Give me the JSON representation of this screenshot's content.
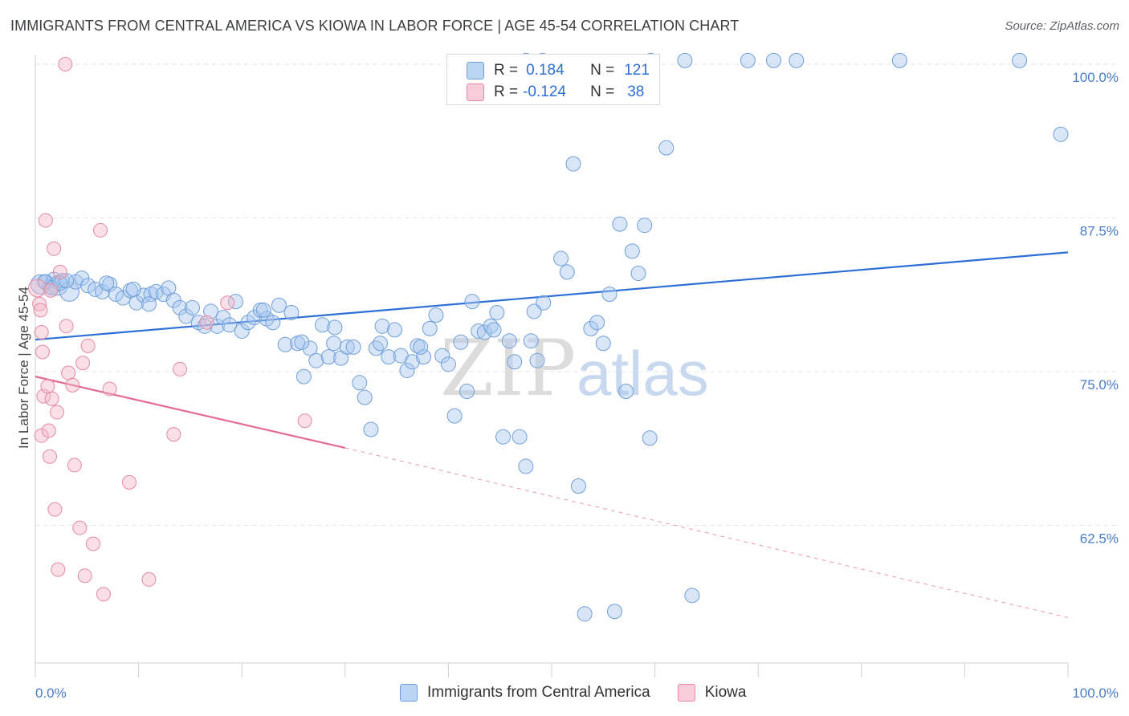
{
  "header": {
    "title": "IMMIGRANTS FROM CENTRAL AMERICA VS KIOWA IN LABOR FORCE | AGE 45-54 CORRELATION CHART",
    "source": "Source: ZipAtlas.com"
  },
  "legend": {
    "rows": [
      {
        "r_label": "R =",
        "r_value": "0.184",
        "n_label": "N =",
        "n_value": "121",
        "color": "#a8c8f0"
      },
      {
        "r_label": "R =",
        "r_value": "-0.124",
        "n_label": "N =",
        "n_value": "38",
        "color": "#f5b8c8"
      }
    ]
  },
  "watermark": {
    "zip": "ZIP",
    "atlas": "atlas"
  },
  "chart_data": {
    "type": "scatter",
    "title": "IMMIGRANTS FROM CENTRAL AMERICA VS KIOWA IN LABOR FORCE | AGE 45-54 CORRELATION CHART",
    "xlabel": "",
    "ylabel": "In Labor Force | Age 45-54",
    "xlim": [
      0,
      100
    ],
    "ylim": [
      51,
      102
    ],
    "x_tick_labels": [
      "0.0%",
      "100.0%"
    ],
    "y_ticks": [
      62.5,
      75.0,
      87.5,
      100.0
    ],
    "y_tick_labels": [
      "62.5%",
      "75.0%",
      "87.5%",
      "100.0%"
    ],
    "grid": true,
    "legend_position": "top-center",
    "series": [
      {
        "name": "Immigrants from Central America",
        "color": "#a8c8f0",
        "stroke": "#6f9fd8",
        "line_color": "#2d6fd6",
        "trend": {
          "x0": 0,
          "y0": 77.6,
          "x1": 100,
          "y1": 84.7
        },
        "points": [
          [
            0.5,
            82.1
          ],
          [
            1.0,
            82.3
          ],
          [
            1.4,
            81.9
          ],
          [
            1.8,
            82.5
          ],
          [
            2.2,
            82.0
          ],
          [
            2.6,
            82.4
          ],
          [
            3.3,
            81.5
          ],
          [
            3.9,
            82.3
          ],
          [
            4.5,
            82.6
          ],
          [
            5.1,
            82.0
          ],
          [
            5.8,
            81.7
          ],
          [
            6.5,
            81.5
          ],
          [
            7.2,
            82.1
          ],
          [
            7.8,
            81.3
          ],
          [
            8.5,
            81.0
          ],
          [
            9.2,
            81.6
          ],
          [
            9.8,
            80.6
          ],
          [
            10.5,
            81.2
          ],
          [
            11.2,
            81.3
          ],
          [
            11.7,
            81.5
          ],
          [
            12.4,
            81.3
          ],
          [
            12.9,
            81.8
          ],
          [
            13.4,
            80.8
          ],
          [
            14.0,
            80.2
          ],
          [
            14.6,
            79.5
          ],
          [
            15.2,
            80.2
          ],
          [
            15.8,
            79.0
          ],
          [
            16.4,
            78.7
          ],
          [
            17.0,
            79.9
          ],
          [
            17.6,
            78.7
          ],
          [
            18.2,
            79.4
          ],
          [
            18.8,
            78.8
          ],
          [
            19.4,
            80.7
          ],
          [
            20.0,
            78.3
          ],
          [
            20.6,
            79.0
          ],
          [
            21.2,
            79.4
          ],
          [
            21.8,
            80.0
          ],
          [
            22.4,
            79.3
          ],
          [
            23.0,
            79.0
          ],
          [
            23.6,
            80.4
          ],
          [
            24.2,
            77.2
          ],
          [
            24.8,
            79.8
          ],
          [
            25.4,
            77.3
          ],
          [
            26.0,
            74.6
          ],
          [
            26.6,
            76.9
          ],
          [
            27.2,
            75.9
          ],
          [
            27.8,
            78.8
          ],
          [
            28.4,
            76.2
          ],
          [
            29.0,
            78.6
          ],
          [
            29.6,
            76.1
          ],
          [
            30.2,
            77.0
          ],
          [
            30.8,
            77.0
          ],
          [
            31.4,
            74.1
          ],
          [
            31.9,
            72.9
          ],
          [
            32.5,
            70.3
          ],
          [
            33.0,
            76.9
          ],
          [
            33.6,
            78.7
          ],
          [
            34.2,
            76.2
          ],
          [
            34.8,
            78.4
          ],
          [
            35.4,
            76.3
          ],
          [
            36.0,
            75.1
          ],
          [
            36.5,
            75.8
          ],
          [
            37.0,
            77.1
          ],
          [
            37.6,
            76.2
          ],
          [
            38.2,
            78.5
          ],
          [
            38.8,
            79.6
          ],
          [
            39.4,
            76.3
          ],
          [
            40.0,
            75.6
          ],
          [
            40.6,
            71.4
          ],
          [
            41.2,
            77.4
          ],
          [
            41.8,
            73.4
          ],
          [
            42.3,
            80.7
          ],
          [
            42.9,
            78.3
          ],
          [
            43.5,
            78.2
          ],
          [
            44.1,
            78.7
          ],
          [
            44.7,
            79.8
          ],
          [
            45.3,
            69.7
          ],
          [
            45.9,
            77.5
          ],
          [
            46.4,
            75.8
          ],
          [
            46.9,
            69.7
          ],
          [
            47.5,
            67.3
          ],
          [
            48.0,
            77.5
          ],
          [
            48.6,
            75.9
          ],
          [
            49.2,
            80.6
          ],
          [
            50.9,
            84.2
          ],
          [
            51.5,
            83.1
          ],
          [
            52.1,
            91.9
          ],
          [
            52.6,
            65.7
          ],
          [
            53.2,
            55.3
          ],
          [
            53.8,
            78.5
          ],
          [
            54.4,
            79.0
          ],
          [
            55.0,
            77.3
          ],
          [
            55.6,
            81.3
          ],
          [
            56.1,
            55.5
          ],
          [
            56.6,
            87.0
          ],
          [
            57.2,
            73.4
          ],
          [
            57.8,
            84.8
          ],
          [
            58.4,
            83.0
          ],
          [
            59.0,
            86.9
          ],
          [
            59.5,
            69.6
          ],
          [
            61.1,
            93.2
          ],
          [
            63.6,
            56.8
          ],
          [
            0.9,
            82.3
          ],
          [
            1.6,
            81.8
          ],
          [
            2.4,
            82.2
          ],
          [
            3.0,
            82.4
          ],
          [
            6.9,
            82.2
          ],
          [
            9.5,
            81.7
          ],
          [
            11.0,
            80.5
          ],
          [
            22.1,
            80.0
          ],
          [
            25.8,
            77.4
          ],
          [
            28.9,
            77.3
          ],
          [
            33.4,
            77.3
          ],
          [
            37.3,
            77.0
          ],
          [
            44.4,
            78.4
          ],
          [
            48.3,
            79.9
          ],
          [
            99.3,
            94.3
          ],
          [
            73.7,
            100.3
          ]
        ],
        "top_row_points": [
          [
            47.5,
            100.3
          ],
          [
            49.1,
            100.3
          ],
          [
            59.6,
            100.3
          ],
          [
            62.9,
            100.3
          ],
          [
            69.0,
            100.3
          ],
          [
            71.5,
            100.3
          ],
          [
            83.7,
            100.3
          ],
          [
            95.3,
            100.3
          ]
        ]
      },
      {
        "name": "Kiowa",
        "color": "#f5b8c8",
        "stroke": "#e48aa3",
        "line_color": "#e36b95",
        "trend": {
          "x0": 0,
          "y0": 74.6,
          "x1": 30,
          "y1": 68.8
        },
        "trend_dashed": {
          "x0": 30,
          "y0": 68.8,
          "x1": 100,
          "y1": 55.0
        },
        "points": [
          [
            0.2,
            81.8
          ],
          [
            0.4,
            80.5
          ],
          [
            0.5,
            80.0
          ],
          [
            0.6,
            78.2
          ],
          [
            0.7,
            76.6
          ],
          [
            0.8,
            73.0
          ],
          [
            0.6,
            69.8
          ],
          [
            1.0,
            87.3
          ],
          [
            1.2,
            73.8
          ],
          [
            1.3,
            70.2
          ],
          [
            1.4,
            68.1
          ],
          [
            1.6,
            72.8
          ],
          [
            1.8,
            85.0
          ],
          [
            1.9,
            63.8
          ],
          [
            2.1,
            71.7
          ],
          [
            2.2,
            58.9
          ],
          [
            2.4,
            83.1
          ],
          [
            3.0,
            78.7
          ],
          [
            3.2,
            74.9
          ],
          [
            3.6,
            73.9
          ],
          [
            3.8,
            67.4
          ],
          [
            4.3,
            62.3
          ],
          [
            4.6,
            75.7
          ],
          [
            4.8,
            58.4
          ],
          [
            5.1,
            77.1
          ],
          [
            5.6,
            61.0
          ],
          [
            6.3,
            86.5
          ],
          [
            6.6,
            56.9
          ],
          [
            7.2,
            73.6
          ],
          [
            9.1,
            66.0
          ],
          [
            11.0,
            58.1
          ],
          [
            13.4,
            69.9
          ],
          [
            14.0,
            75.2
          ],
          [
            16.6,
            79.0
          ],
          [
            18.6,
            80.6
          ],
          [
            26.1,
            71.0
          ],
          [
            2.9,
            100.0
          ],
          [
            1.5,
            81.6
          ]
        ]
      }
    ]
  },
  "bottom_legend": {
    "items": [
      {
        "label": "Immigrants from Central America",
        "color": "#a8c8f0"
      },
      {
        "label": "Kiowa",
        "color": "#f5b8c8"
      }
    ]
  }
}
